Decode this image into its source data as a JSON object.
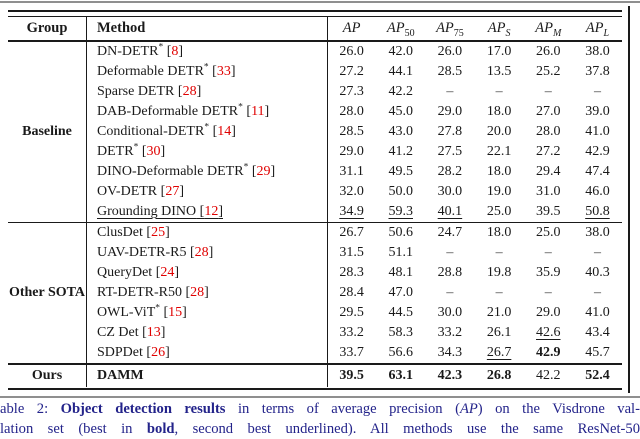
{
  "page": {
    "decor": {
      "gray_line_color": "#8f8f8f",
      "rule_color": "#1a1a1a",
      "cite_color": "#e00000",
      "caption_color": "#23238a"
    },
    "caption": {
      "line1": [
        {
          "t": "able 2: ",
          "s": "n"
        },
        {
          "t": "Object detection results",
          "s": "b"
        },
        {
          "t": " in terms of average precision (",
          "s": "n"
        },
        {
          "t": "AP",
          "s": "i"
        },
        {
          "t": ") on the Visdrone val-",
          "s": "n"
        }
      ],
      "line2": [
        {
          "t": "lation set (best in ",
          "s": "n"
        },
        {
          "t": "bold",
          "s": "b"
        },
        {
          "t": ", second best underlined). All methods use the same ResNet-50",
          "s": "n"
        }
      ]
    }
  },
  "table": {
    "headers": {
      "group": "Group",
      "method": "Method",
      "metrics": [
        {
          "base": "AP",
          "sub": ""
        },
        {
          "base": "AP",
          "sub": "50"
        },
        {
          "base": "AP",
          "sub": "75"
        },
        {
          "base": "AP",
          "sub": "S",
          "sub_italic": true
        },
        {
          "base": "AP",
          "sub": "M",
          "sub_italic": true
        },
        {
          "base": "AP",
          "sub": "L",
          "sub_italic": true
        }
      ]
    },
    "sections": [
      {
        "group": "Baseline",
        "rows": [
          {
            "method": "DN-DETR",
            "sup": "*",
            "cite": "8",
            "values": [
              "26.0",
              "42.0",
              "26.0",
              "17.0",
              "26.0",
              "38.0"
            ]
          },
          {
            "method": "Deformable DETR",
            "sup": "*",
            "cite": "33",
            "values": [
              "27.2",
              "44.1",
              "28.5",
              "13.5",
              "25.2",
              "37.8"
            ]
          },
          {
            "method": "Sparse DETR",
            "cite": "28",
            "values": [
              "27.3",
              "42.2",
              "–",
              "–",
              "–",
              "–"
            ]
          },
          {
            "method": "DAB-Deformable DETR",
            "sup": "*",
            "cite": "11",
            "values": [
              "28.0",
              "45.0",
              "29.0",
              "18.0",
              "27.0",
              "39.0"
            ]
          },
          {
            "method": "Conditional-DETR",
            "sup": "*",
            "cite": "14",
            "values": [
              "28.5",
              "43.0",
              "27.8",
              "20.0",
              "28.0",
              "41.0"
            ]
          },
          {
            "method": "DETR",
            "sup": "*",
            "cite": "30",
            "values": [
              "29.0",
              "41.2",
              "27.5",
              "22.1",
              "27.2",
              "42.9"
            ]
          },
          {
            "method": "DINO-Deformable DETR",
            "sup": "*",
            "cite": "29",
            "values": [
              "31.1",
              "49.5",
              "28.2",
              "18.0",
              "29.4",
              "47.4"
            ]
          },
          {
            "method": "OV-DETR",
            "cite": "27",
            "values": [
              "32.0",
              "50.0",
              "30.0",
              "19.0",
              "31.0",
              "46.0"
            ]
          },
          {
            "method": "Grounding DINO",
            "cite": "12",
            "underline_method": true,
            "values": [
              "34.9",
              "59.3",
              "40.1",
              "25.0",
              "39.5",
              "50.8"
            ],
            "styles": [
              "u",
              "u",
              "u",
              "n",
              "n",
              "u"
            ]
          }
        ]
      },
      {
        "group": "Other SOTA",
        "rows": [
          {
            "method": "ClusDet",
            "cite": "25",
            "values": [
              "26.7",
              "50.6",
              "24.7",
              "18.0",
              "25.0",
              "38.0"
            ]
          },
          {
            "method": "UAV-DETR-R5",
            "cite": "28",
            "values": [
              "31.5",
              "51.1",
              "–",
              "–",
              "–",
              "–"
            ]
          },
          {
            "method": "QueryDet",
            "cite": "24",
            "values": [
              "28.3",
              "48.1",
              "28.8",
              "19.8",
              "35.9",
              "40.3"
            ]
          },
          {
            "method": "RT-DETR-R50",
            "cite": "28",
            "values": [
              "28.4",
              "47.0",
              "–",
              "–",
              "–",
              "–"
            ]
          },
          {
            "method": "OWL-ViT",
            "sup": "*",
            "cite": "15",
            "values": [
              "29.5",
              "44.5",
              "30.0",
              "21.0",
              "29.0",
              "41.0"
            ]
          },
          {
            "method": "CZ Det",
            "cite": "13",
            "values": [
              "33.2",
              "58.3",
              "33.2",
              "26.1",
              "42.6",
              "43.4"
            ],
            "styles": [
              "n",
              "n",
              "n",
              "n",
              "u",
              "n"
            ]
          },
          {
            "method": "SDPDet",
            "cite": "26",
            "values": [
              "33.7",
              "56.6",
              "34.3",
              "26.7",
              "42.9",
              "45.7"
            ],
            "styles": [
              "n",
              "n",
              "n",
              "u",
              "b",
              "n"
            ]
          }
        ]
      }
    ],
    "ours": {
      "group": "Ours",
      "method": "DAMM",
      "values": [
        "39.5",
        "63.1",
        "42.3",
        "26.8",
        "42.2",
        "52.4"
      ],
      "styles": [
        "b",
        "b",
        "b",
        "b",
        "n",
        "b"
      ]
    }
  }
}
